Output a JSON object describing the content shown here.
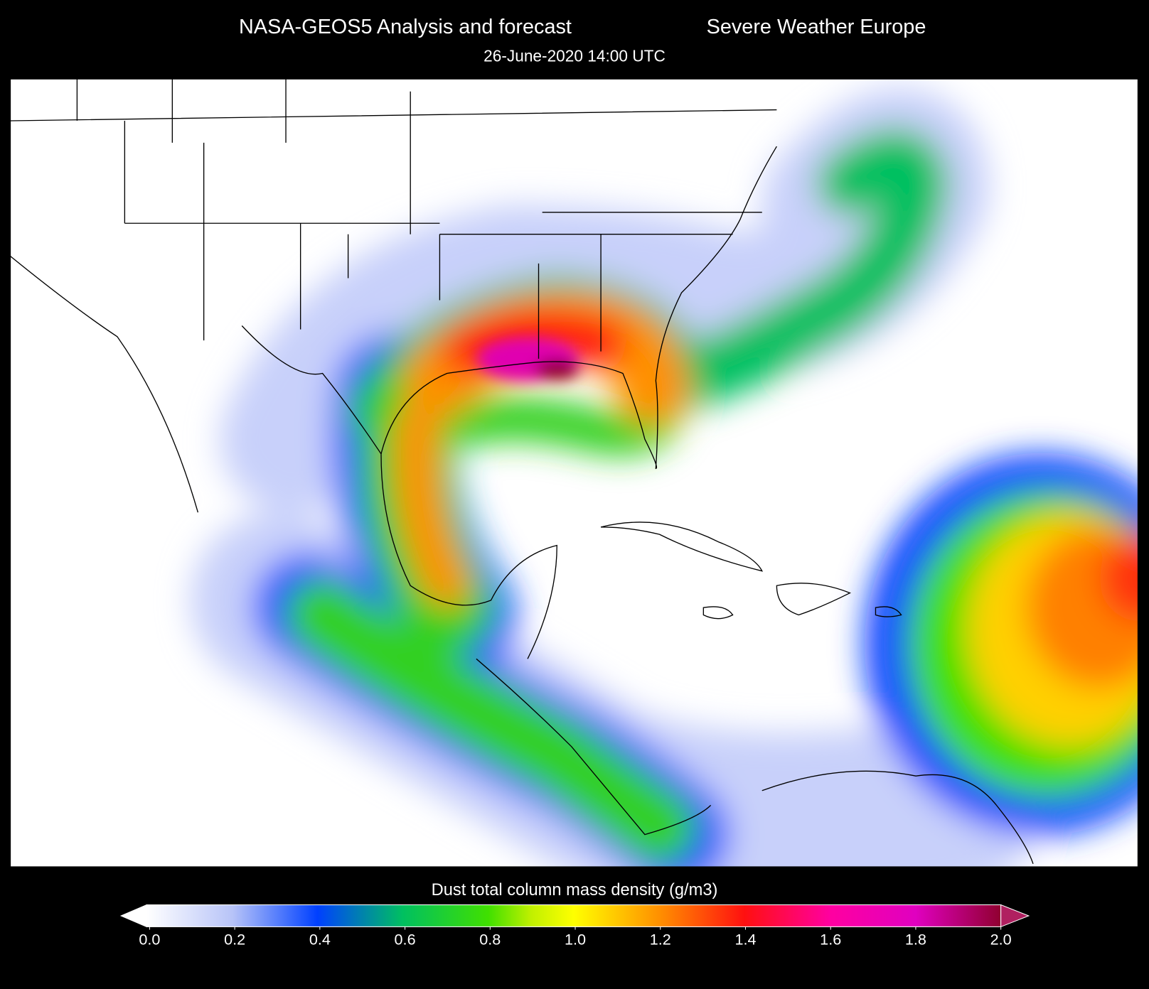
{
  "header": {
    "title": "NASA-GEOS5  Analysis and forecast",
    "source": "Severe Weather Europe",
    "date": "26-June-2020   14:00 UTC"
  },
  "colorbar": {
    "label": "Dust total column mass density (g/m3)",
    "lim": [
      0,
      2
    ],
    "ticks": [
      {
        "value": 0,
        "label": "0.0"
      },
      0.2,
      0.4,
      0.6,
      0.8,
      {
        "value": 1,
        "label": "1.0"
      },
      1.2,
      1.4,
      1.6,
      1.8,
      {
        "value": 2,
        "label": "2.0"
      }
    ]
  }
}
